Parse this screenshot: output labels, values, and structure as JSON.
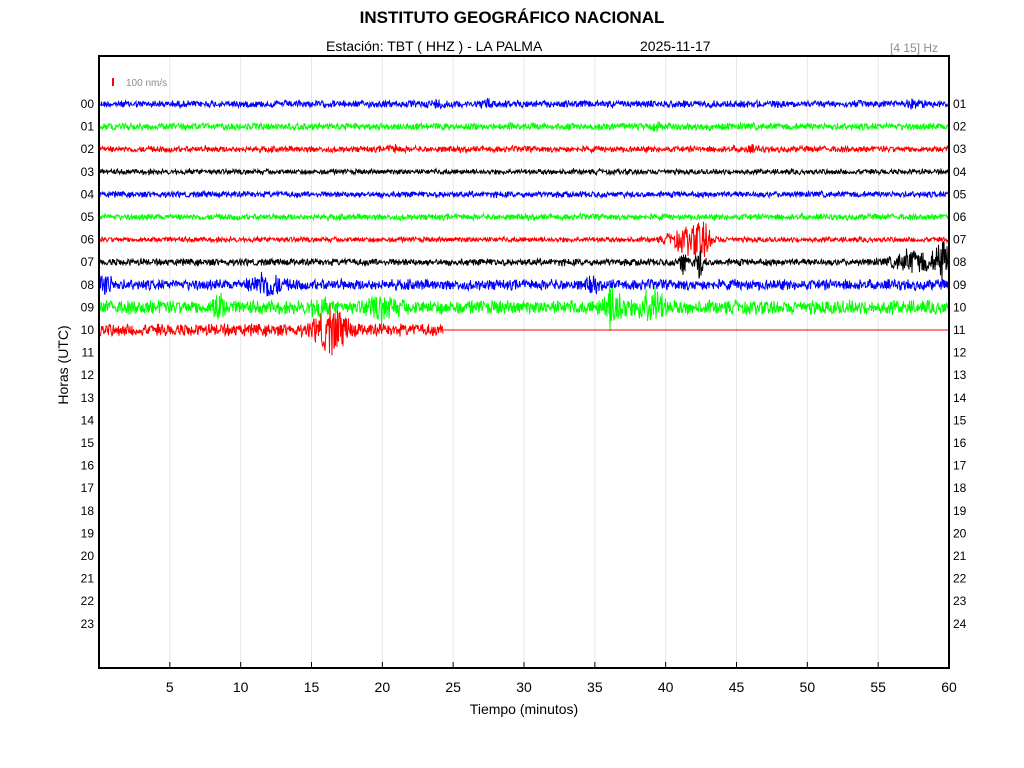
{
  "header": {
    "title": "INSTITUTO GEOGRÁFICO NACIONAL",
    "station": "Estación:  TBT ( HHZ ) - LA PALMA",
    "date": "2025-11-17",
    "band": "[4 15] Hz"
  },
  "chart_data": {
    "type": "line",
    "xlabel": "Tiempo (minutos)",
    "ylabel": "Horas (UTC)",
    "xlim": [
      0,
      60
    ],
    "x_ticks": [
      "5",
      "10",
      "15",
      "20",
      "25",
      "30",
      "35",
      "40",
      "45",
      "50",
      "55",
      "60"
    ],
    "x_tick_values": [
      5,
      10,
      15,
      20,
      25,
      30,
      35,
      40,
      45,
      50,
      55,
      60
    ],
    "grid": "vertical",
    "left_labels": [
      "00",
      "01",
      "02",
      "03",
      "04",
      "05",
      "06",
      "07",
      "08",
      "09",
      "10",
      "11",
      "12",
      "13",
      "14",
      "15",
      "16",
      "17",
      "18",
      "19",
      "20",
      "21",
      "22",
      "23"
    ],
    "right_labels": [
      "01",
      "02",
      "03",
      "04",
      "05",
      "06",
      "07",
      "08",
      "09",
      "10",
      "11",
      "12",
      "13",
      "14",
      "15",
      "16",
      "17",
      "18",
      "19",
      "20",
      "21",
      "22",
      "23",
      "24"
    ],
    "scale_label": "100 nm/s",
    "scale_color": "#ff0000",
    "trace_colors": [
      "#0000ff",
      "#00ff00",
      "#ff0000",
      "#000000"
    ],
    "traces": [
      {
        "hour": 0,
        "amplitude": 4,
        "end_minute": 60,
        "bursts": [
          {
            "t": 24,
            "a": 3,
            "w": 0.6
          },
          {
            "t": 27.5,
            "a": 3,
            "w": 0.5
          },
          {
            "t": 57.5,
            "a": 3,
            "w": 0.6
          }
        ]
      },
      {
        "hour": 1,
        "amplitude": 4,
        "end_minute": 60,
        "bursts": [
          {
            "t": 39.3,
            "a": 3,
            "w": 0.4
          }
        ]
      },
      {
        "hour": 2,
        "amplitude": 3.5,
        "end_minute": 60,
        "bursts": [
          {
            "t": 20.8,
            "a": 3,
            "w": 0.4
          },
          {
            "t": 46,
            "a": 2,
            "w": 0.6
          }
        ]
      },
      {
        "hour": 3,
        "amplitude": 3,
        "end_minute": 60,
        "bursts": []
      },
      {
        "hour": 4,
        "amplitude": 3.5,
        "end_minute": 60,
        "bursts": []
      },
      {
        "hour": 5,
        "amplitude": 3.5,
        "end_minute": 60,
        "bursts": []
      },
      {
        "hour": 6,
        "amplitude": 3,
        "end_minute": 60,
        "bursts": [
          {
            "t": 41.5,
            "a": 13,
            "w": 1.2
          },
          {
            "t": 42.6,
            "a": 16,
            "w": 0.6
          }
        ]
      },
      {
        "hour": 7,
        "amplitude": 4,
        "end_minute": 60,
        "bursts": [
          {
            "t": 41.2,
            "a": 14,
            "w": 0.3
          },
          {
            "t": 42.4,
            "a": 16,
            "w": 0.3
          },
          {
            "t": 57.5,
            "a": 12,
            "w": 1.3
          },
          {
            "t": 59.5,
            "a": 24,
            "w": 0.5
          }
        ]
      },
      {
        "hour": 8,
        "amplitude": 6,
        "end_minute": 60,
        "bursts": [
          {
            "t": 0.4,
            "a": 12,
            "w": 0.5
          },
          {
            "t": 11.8,
            "a": 12,
            "w": 1.0
          },
          {
            "t": 34.8,
            "a": 6,
            "w": 0.4
          }
        ]
      },
      {
        "hour": 9,
        "amplitude": 8,
        "end_minute": 60,
        "bursts": [
          {
            "t": 8.4,
            "a": 16,
            "w": 0.4
          },
          {
            "t": 15.5,
            "a": 9,
            "w": 0.5
          },
          {
            "t": 20,
            "a": 10,
            "w": 1.0
          },
          {
            "t": 36.3,
            "a": 24,
            "w": 0.7
          },
          {
            "t": 39,
            "a": 20,
            "w": 0.8
          }
        ]
      },
      {
        "hour": 10,
        "amplitude": 7,
        "end_minute": 24.3,
        "bursts": [
          {
            "t": 16.4,
            "a": 22,
            "w": 1.1
          }
        ]
      }
    ]
  }
}
